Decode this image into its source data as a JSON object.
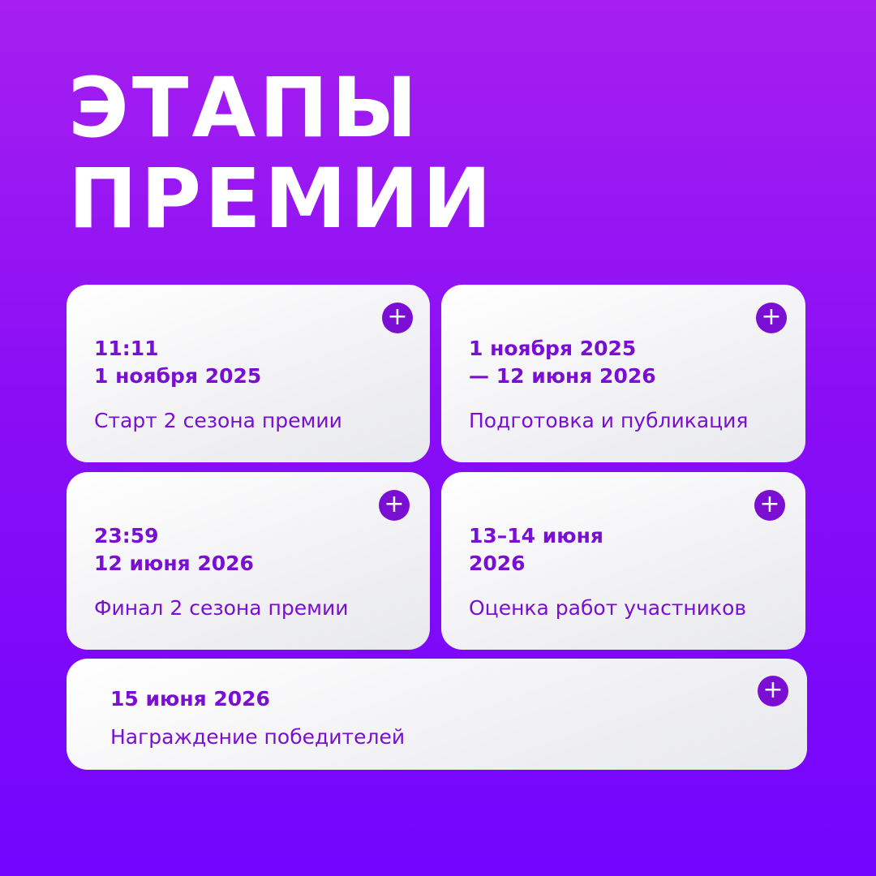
{
  "title_line1": "ЭТАПЫ",
  "title_line2": "ПРЕМИИ",
  "accent_color": "#7a0fd3",
  "stages": [
    {
      "date": "11:11\n1 ноября 2025",
      "description": "Старт 2 сезона премии",
      "icon": "plus-icon"
    },
    {
      "date": "1 ноября 2025\n— 12 июня 2026",
      "description": "Подготовка и публикация",
      "icon": "plus-icon"
    },
    {
      "date": "23:59\n12 июня 2026",
      "description": "Финал 2 сезона премии",
      "icon": "plus-icon"
    },
    {
      "date": "13–14 июня\n2026",
      "description": "Оценка работ участников",
      "icon": "plus-icon"
    },
    {
      "date": "15 июня 2026",
      "description": "Награждение победителей",
      "icon": "plus-icon"
    }
  ],
  "plus_glyph": "+"
}
